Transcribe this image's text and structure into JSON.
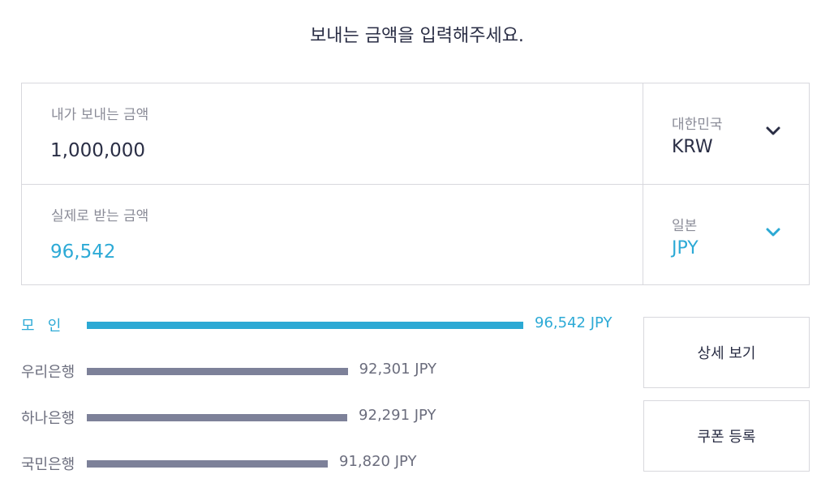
{
  "heading": "보내는 금액을 입력해주세요.",
  "send": {
    "label": "내가 보내는 금액",
    "amount": "1,000,000",
    "country": "대한민국",
    "currency": "KRW"
  },
  "receive": {
    "label": "실제로 받는 금액",
    "amount": "96,542",
    "country": "일본",
    "currency": "JPY"
  },
  "comparison": {
    "rows": [
      {
        "name": "모인",
        "value": 96542,
        "value_label": "96,542 JPY",
        "highlight": true
      },
      {
        "name": "우리은행",
        "value": 92301,
        "value_label": "92,301 JPY",
        "highlight": false
      },
      {
        "name": "하나은행",
        "value": 92291,
        "value_label": "92,291 JPY",
        "highlight": false
      },
      {
        "name": "국민은행",
        "value": 91820,
        "value_label": "91,820 JPY",
        "highlight": false
      }
    ]
  },
  "buttons": {
    "detail": "상세 보기",
    "coupon": "쿠폰 등록"
  },
  "colors": {
    "accent": "#2ba9d4",
    "bar_default": "#7d8199",
    "text_dark": "#2a2e45",
    "text_muted": "#8a8b97",
    "border": "#d8d8dd"
  },
  "icons": {
    "send_currency_dropdown": "chevron-down-icon",
    "receive_currency_dropdown": "chevron-down-icon"
  }
}
